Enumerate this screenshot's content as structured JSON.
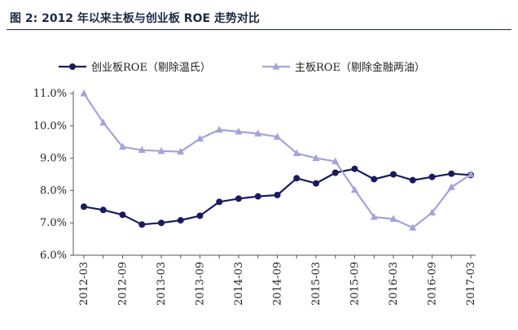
{
  "title": "图 2: 2012 年以来主板与创业板 ROE 走势对比",
  "chart_data": {
    "type": "line",
    "title": "图 2: 2012 年以来主板与创业板 ROE 走势对比",
    "xlabel": "",
    "ylabel": "",
    "ylim": [
      6.0,
      11.0
    ],
    "yticks": [
      "6.0%",
      "7.0%",
      "8.0%",
      "9.0%",
      "10.0%",
      "11.0%"
    ],
    "x_tick_labels": [
      "2012-03",
      "2012-09",
      "2013-03",
      "2013-09",
      "2014-03",
      "2014-09",
      "2015-03",
      "2015-09",
      "2016-03",
      "2016-09",
      "2017-03"
    ],
    "x": [
      "2012-03",
      "2012-06",
      "2012-09",
      "2012-12",
      "2013-03",
      "2013-06",
      "2013-09",
      "2013-12",
      "2014-03",
      "2014-06",
      "2014-09",
      "2014-12",
      "2015-03",
      "2015-06",
      "2015-09",
      "2015-12",
      "2016-03",
      "2016-06",
      "2016-09",
      "2016-12",
      "2017-03"
    ],
    "legend_position": "top",
    "grid": false,
    "series": [
      {
        "name": "创业板ROE（剔除温氏）",
        "color": "#1a1a5e",
        "marker": "circle",
        "values": [
          7.5,
          7.4,
          7.25,
          6.95,
          7.0,
          7.08,
          7.22,
          7.65,
          7.75,
          7.82,
          7.86,
          8.38,
          8.22,
          8.55,
          8.67,
          8.35,
          8.5,
          8.32,
          8.42,
          8.52,
          8.48
        ]
      },
      {
        "name": "主板ROE（剔除金融两油）",
        "color": "#a3a3d9",
        "marker": "triangle",
        "values": [
          11.0,
          10.1,
          9.35,
          9.25,
          9.22,
          9.2,
          9.6,
          9.88,
          9.82,
          9.76,
          9.66,
          9.15,
          9.0,
          8.9,
          8.02,
          7.18,
          7.12,
          6.85,
          7.32,
          8.1,
          8.5
        ]
      }
    ]
  }
}
